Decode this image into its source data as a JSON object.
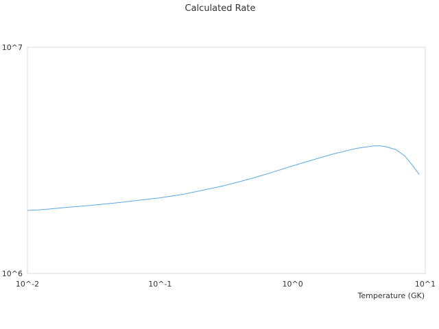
{
  "chart_data": {
    "type": "line",
    "title": "Calculated Rate",
    "xlabel": "Temperature (GK)",
    "ylabel": "",
    "x_scale": "log",
    "y_scale": "log",
    "xlim": [
      0.01,
      10
    ],
    "ylim": [
      1000000,
      10000000
    ],
    "x_tick_values": [
      0.01,
      0.1,
      1,
      10
    ],
    "x_tick_labels": [
      "10^-2",
      "10^-1",
      "10^0",
      "10^1"
    ],
    "y_tick_values": [
      1000000,
      10000000
    ],
    "y_tick_labels": [
      "10^6",
      "10^7"
    ],
    "grid": false,
    "legend": "none",
    "colors": {
      "line": "#5aa9e6",
      "frame": "#d9d9d9",
      "text": "#333333"
    },
    "series": [
      {
        "x": [
          0.01,
          0.012,
          0.015,
          0.02,
          0.03,
          0.05,
          0.07,
          0.1,
          0.15,
          0.2,
          0.3,
          0.4,
          0.5,
          0.7,
          1.0,
          1.5,
          2.0,
          3.0,
          4.0,
          4.5,
          5.0,
          6.0,
          7.0,
          8.0,
          9.0
        ],
        "values": [
          1900000,
          1910000,
          1930000,
          1960000,
          2000000,
          2060000,
          2110000,
          2160000,
          2240000,
          2320000,
          2440000,
          2550000,
          2640000,
          2800000,
          2990000,
          3210000,
          3370000,
          3570000,
          3660000,
          3670000,
          3640000,
          3530000,
          3310000,
          3010000,
          2740000
        ]
      }
    ]
  }
}
